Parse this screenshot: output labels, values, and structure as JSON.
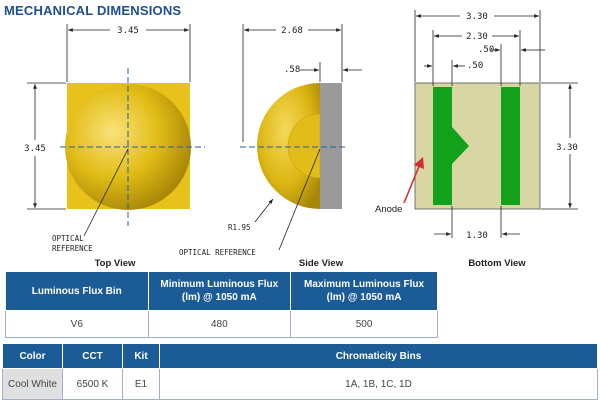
{
  "title": "MECHANICAL DIMENSIONS",
  "top_view": {
    "label": "Top View",
    "width_dim": "3.45",
    "height_dim": "3.45",
    "optical_ref_line1": "OPTICAL",
    "optical_ref_line2": "REFERENCE"
  },
  "side_view": {
    "label": "Side View",
    "width_dim": "2.68",
    "thickness_dim": ".58",
    "radius_dim": "R1.95",
    "optical_ref": "OPTICAL REFERENCE"
  },
  "bottom_view": {
    "label": "Bottom View",
    "width_dim": "3.30",
    "inner_dim": "2.30",
    "pad_dim_top": ".50",
    "pad_dim_mid": ".50",
    "height_dim": "3.30",
    "gap_dim": "1.30",
    "anode_label": "Anode"
  },
  "colors": {
    "header_blue": "#1b5b96",
    "dome_yellow": "#e8c21a",
    "pad_green": "#11a11b",
    "substrate": "#d8d6a3"
  },
  "flux_table": {
    "headers": [
      "Luminous Flux Bin",
      "Minimum Luminous Flux (lm) @ 1050 mA",
      "Maximum Luminous Flux (lm) @ 1050 mA"
    ],
    "row": [
      "V6",
      "480",
      "500"
    ]
  },
  "chromaticity_table": {
    "headers": [
      "Color",
      "CCT",
      "Kit",
      "Chromaticity Bins"
    ],
    "row": [
      "Cool White",
      "6500 K",
      "E1",
      "1A, 1B, 1C, 1D"
    ]
  }
}
